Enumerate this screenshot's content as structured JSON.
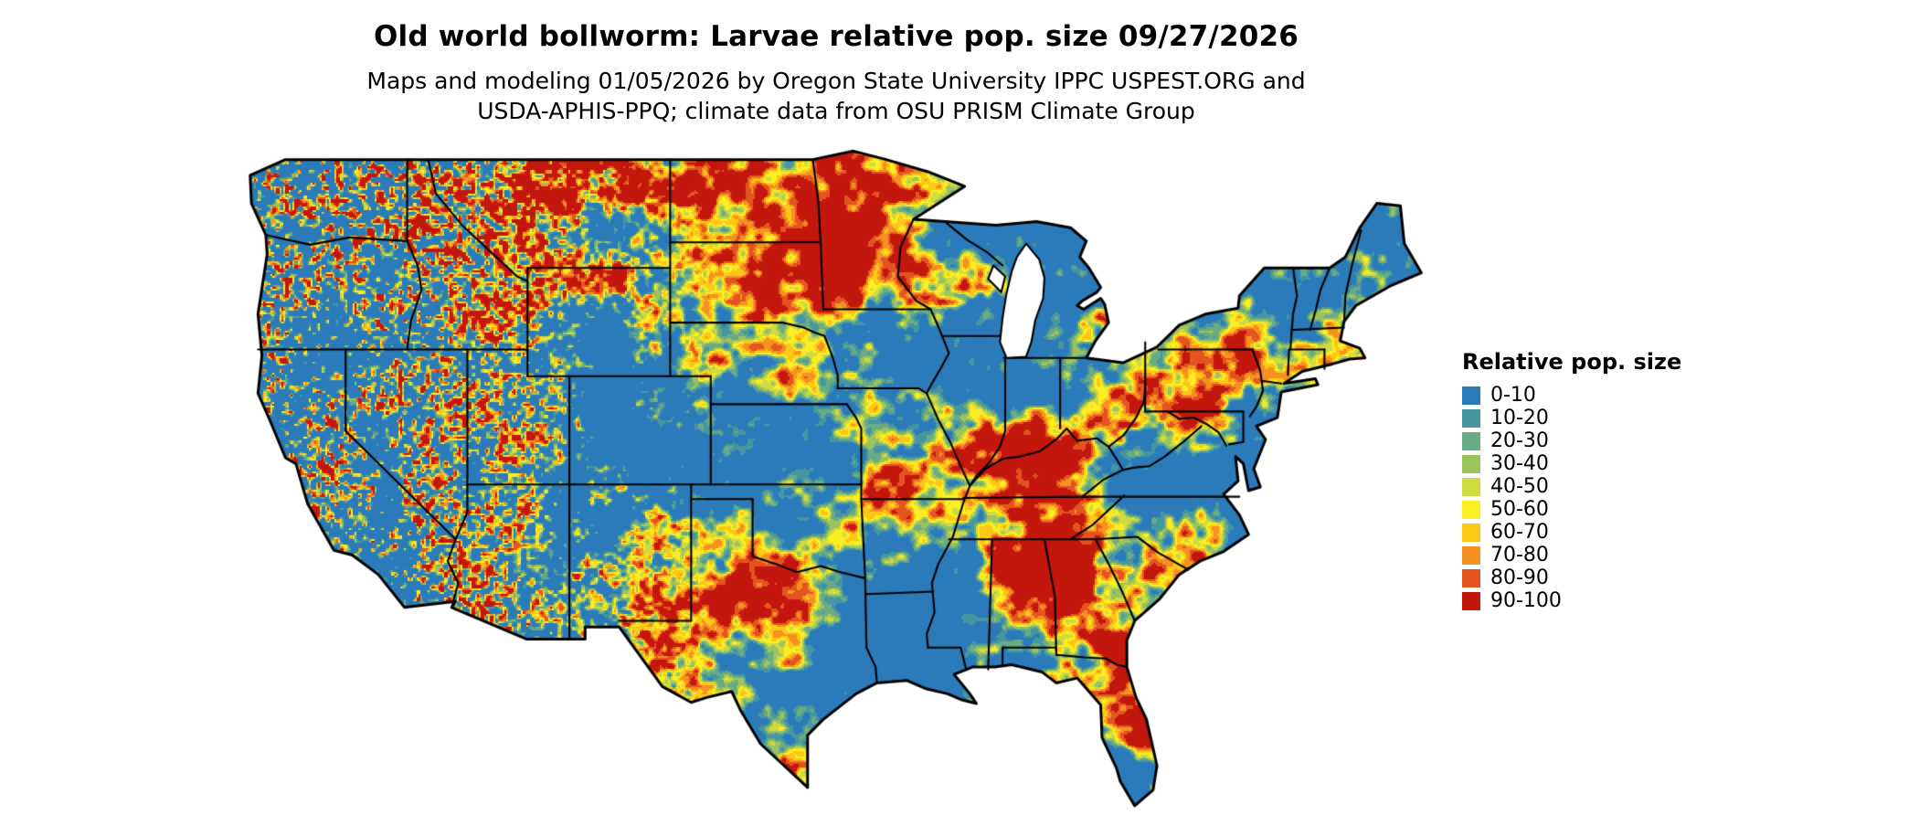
{
  "header": {
    "title": "Old world bollworm: Larvae relative pop. size 09/27/2026",
    "subtitle_line1": "Maps and modeling 01/05/2026 by Oregon State University IPPC USPEST.ORG and",
    "subtitle_line2": "USDA-APHIS-PPQ; climate data from OSU PRISM Climate Group"
  },
  "map": {
    "region": "Contiguous United States",
    "kind": "raster heat map with state borders"
  },
  "legend": {
    "title": "Relative pop. size",
    "items": [
      {
        "label": "0-10",
        "color": "#2b7bba"
      },
      {
        "label": "10-20",
        "color": "#4696a2"
      },
      {
        "label": "20-30",
        "color": "#68ab84"
      },
      {
        "label": "30-40",
        "color": "#9cc45d"
      },
      {
        "label": "40-50",
        "color": "#cfdb3f"
      },
      {
        "label": "50-60",
        "color": "#fbee23"
      },
      {
        "label": "60-70",
        "color": "#fdc717"
      },
      {
        "label": "70-80",
        "color": "#f59120"
      },
      {
        "label": "80-90",
        "color": "#e35420"
      },
      {
        "label": "90-100",
        "color": "#c3170d"
      }
    ]
  }
}
